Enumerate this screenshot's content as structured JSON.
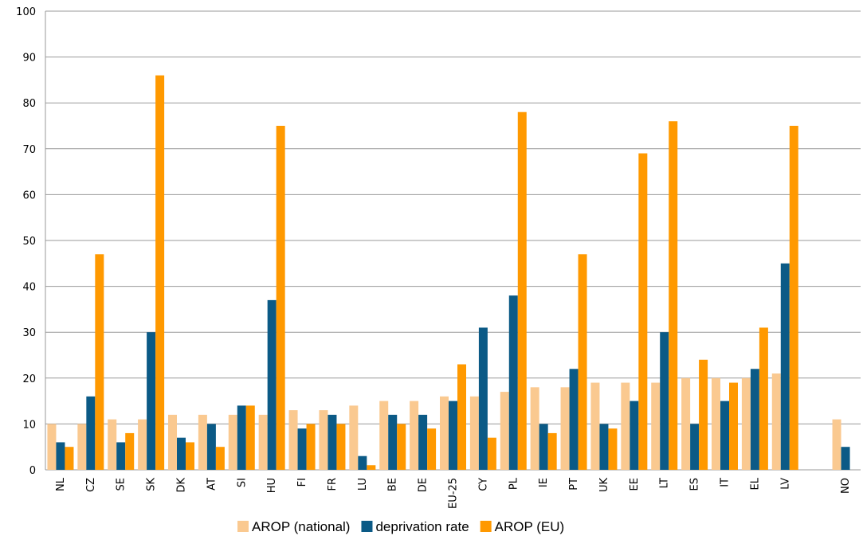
{
  "chart_data": {
    "type": "bar",
    "categories": [
      "NL",
      "CZ",
      "SE",
      "SK",
      "DK",
      "AT",
      "SI",
      "HU",
      "FI",
      "FR",
      "LU",
      "BE",
      "DE",
      "EU-25",
      "CY",
      "PL",
      "IE",
      "PT",
      "UK",
      "EE",
      "LT",
      "ES",
      "IT",
      "EL",
      "LV",
      null,
      "NO"
    ],
    "series": [
      {
        "name": "AROP (national)",
        "color": "#fac990",
        "values": [
          10,
          10,
          11,
          11,
          12,
          12,
          12,
          12,
          13,
          13,
          14,
          15,
          15,
          16,
          16,
          17,
          18,
          18,
          19,
          19,
          19,
          20,
          20,
          20,
          21,
          null,
          11
        ]
      },
      {
        "name": "deprivation rate",
        "color": "#0b5a86",
        "values": [
          6,
          16,
          6,
          30,
          7,
          10,
          14,
          37,
          9,
          12,
          3,
          12,
          12,
          15,
          31,
          38,
          10,
          22,
          10,
          15,
          30,
          10,
          15,
          22,
          45,
          null,
          5
        ]
      },
      {
        "name": "AROP (EU)",
        "color": "#ff9900",
        "values": [
          5,
          47,
          8,
          86,
          6,
          5,
          14,
          75,
          10,
          10,
          1,
          10,
          9,
          23,
          7,
          78,
          8,
          47,
          9,
          69,
          76,
          24,
          19,
          31,
          75,
          null,
          null
        ]
      }
    ],
    "ylim": [
      0,
      100
    ],
    "yticks": [
      0,
      10,
      20,
      30,
      40,
      50,
      60,
      70,
      80,
      90,
      100
    ],
    "grid": true,
    "legend": "bottom"
  }
}
